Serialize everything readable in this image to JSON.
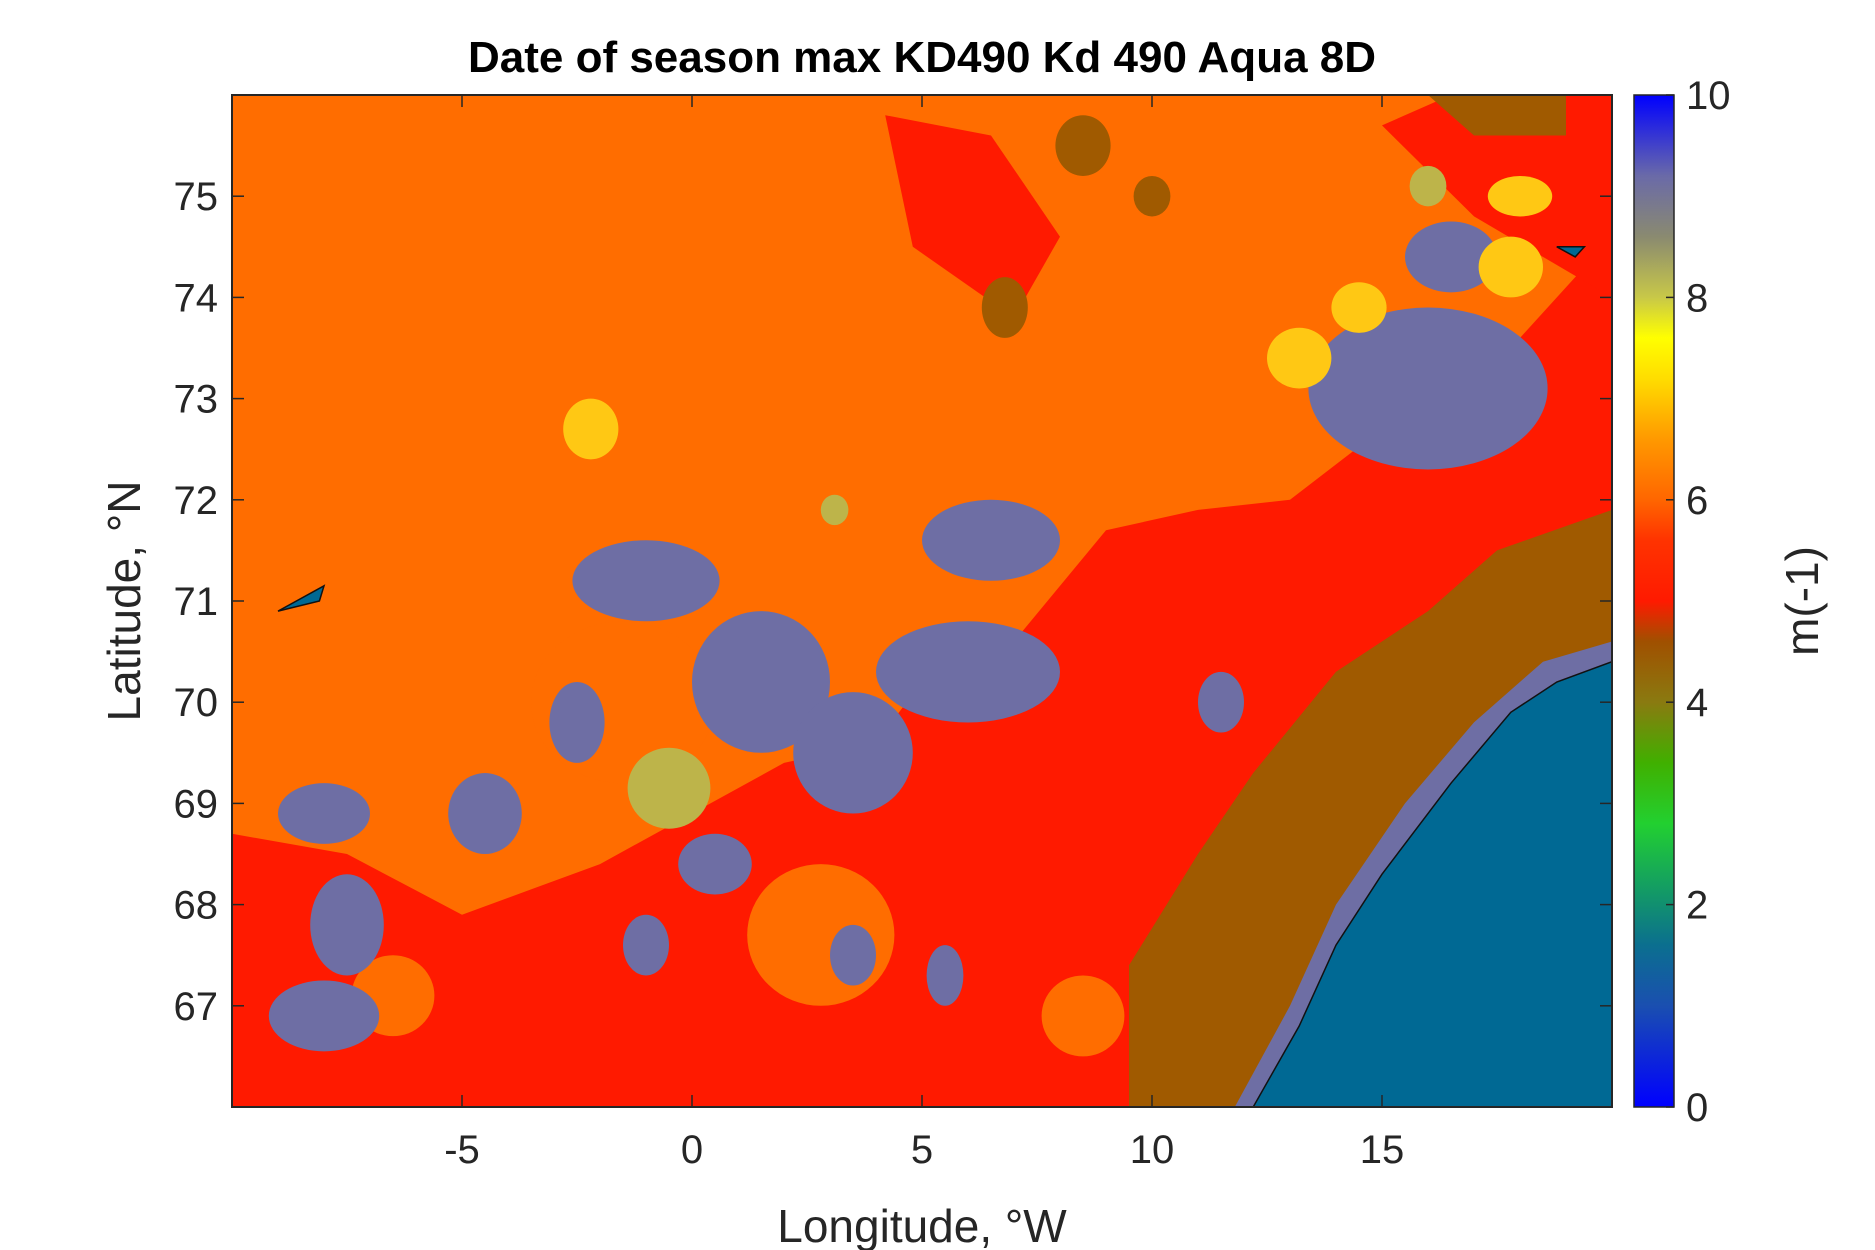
{
  "chart_data": {
    "type": "heatmap",
    "title": "Date of season max KD490 Kd 490 Aqua 8D",
    "xlabel": "Longitude, °W",
    "ylabel": "Latitude, °N",
    "xlim": [
      -10,
      20
    ],
    "ylim": [
      66,
      76
    ],
    "x_ticks": [
      -5,
      0,
      5,
      10,
      15
    ],
    "x_tick_labels": [
      "-5",
      "0",
      "5",
      "10",
      "15"
    ],
    "y_ticks": [
      67,
      68,
      69,
      70,
      71,
      72,
      73,
      74,
      75
    ],
    "y_tick_labels": [
      "67",
      "68",
      "69",
      "70",
      "71",
      "72",
      "73",
      "74",
      "75"
    ],
    "colorbar": {
      "label": "m(-1)",
      "range": [
        0,
        10
      ],
      "ticks": [
        0,
        2,
        4,
        6,
        8,
        10
      ],
      "tick_labels": [
        "0",
        "2",
        "4",
        "6",
        "8",
        "10"
      ],
      "colormap": [
        [
          0.0,
          "#0000ff"
        ],
        [
          1.0,
          "#1a4fb0"
        ],
        [
          1.6,
          "#0b6f8f"
        ],
        [
          2.2,
          "#14a060"
        ],
        [
          2.8,
          "#22d030"
        ],
        [
          3.4,
          "#40b000"
        ],
        [
          4.0,
          "#8a7a10"
        ],
        [
          4.6,
          "#a05000"
        ],
        [
          5.0,
          "#ff1a00"
        ],
        [
          5.6,
          "#ff3300"
        ],
        [
          6.0,
          "#ff6600"
        ],
        [
          6.6,
          "#ff9900"
        ],
        [
          7.2,
          "#ffdd00"
        ],
        [
          7.6,
          "#ffff00"
        ],
        [
          8.0,
          "#c8c848"
        ],
        [
          8.6,
          "#8a8a70"
        ],
        [
          9.2,
          "#6a6aa8"
        ],
        [
          10.0,
          "#0000ff"
        ]
      ]
    },
    "regions": [
      {
        "name": "background",
        "value": 6.1,
        "color": "#ff6d00"
      },
      {
        "name": "red zone",
        "value": 5.2,
        "color": "#ff1a00"
      },
      {
        "name": "coastal band",
        "value": 4.2,
        "color": "#a05a00"
      },
      {
        "name": "patches",
        "value": 9.0,
        "color": "#6e6ea4"
      },
      {
        "name": "yellow patches",
        "value": 7.0,
        "color": "#ffc814"
      },
      {
        "name": "olive patches",
        "value": 8.0,
        "color": "#bdb44a"
      },
      {
        "name": "land",
        "value": 1.5,
        "color": "#006994"
      }
    ],
    "grid": false
  }
}
